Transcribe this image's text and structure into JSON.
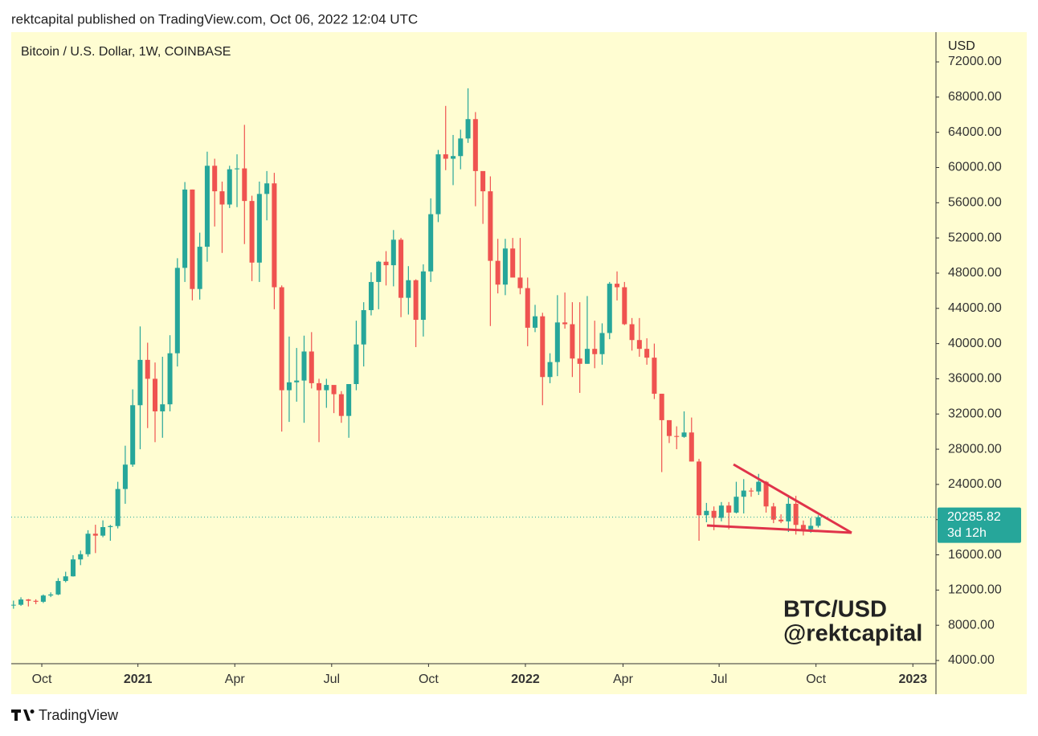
{
  "header": {
    "text": "rektcapital published on TradingView.com, Oct 06, 2022 12:04 UTC"
  },
  "footer": {
    "brand": "TradingView"
  },
  "chart_data": {
    "type": "candlestick",
    "title": "Bitcoin / U.S. Dollar, 1W, COINBASE",
    "y_axis_label": "USD",
    "annotation": [
      "BTC/USD",
      "@rektcapital"
    ],
    "countdown": "3d 12h",
    "up_color": "#26a69a",
    "down_color": "#ef5350",
    "categories": [
      null,
      null,
      null,
      null,
      null,
      null,
      null,
      null,
      null,
      null,
      null,
      null,
      null,
      null,
      null,
      null,
      null,
      null,
      null,
      null,
      null,
      null,
      null,
      null,
      null,
      null,
      null,
      null,
      null,
      null,
      null,
      null,
      null,
      null,
      null,
      null,
      null,
      null,
      null,
      null,
      null,
      null,
      null,
      null,
      null,
      null,
      null,
      null,
      null,
      null,
      null,
      null,
      null,
      null,
      null,
      null,
      null,
      null,
      null,
      null,
      null,
      null,
      null,
      null,
      null,
      null,
      null,
      null,
      null,
      null,
      null,
      null,
      null,
      null,
      null,
      null,
      null,
      null,
      null,
      null,
      null,
      null,
      null,
      null,
      null,
      null,
      null,
      null,
      null,
      null,
      null,
      null,
      null,
      null,
      null,
      null,
      null,
      null,
      null,
      null,
      null,
      null,
      null,
      null,
      null,
      null,
      null,
      null,
      null
    ],
    "open": [
      10280,
      10330,
      10930,
      10780,
      10670,
      11380,
      11500,
      13030,
      13560,
      15480,
      16070,
      18400,
      18180,
      19150,
      19270,
      23480,
      26250,
      33000,
      38150,
      36000,
      32300,
      33100,
      38900,
      48600,
      57500,
      46200,
      51000,
      60200,
      57300,
      55800,
      59800,
      59900,
      56200,
      49200,
      57000,
      58200,
      46400,
      34700,
      35600,
      35800,
      39100,
      35500,
      34700,
      35300,
      34250,
      31780,
      35400,
      39900,
      43800,
      47000,
      49300,
      48900,
      51800,
      45200,
      47200,
      42700,
      48200,
      54700,
      61500,
      61000,
      61300,
      63300,
      65500,
      59600,
      57300,
      49400,
      46700,
      50800,
      47500,
      46300,
      41800,
      43100,
      36200,
      37900,
      42400,
      42200,
      38300,
      37700,
      39400,
      38800,
      41200,
      46800,
      46400,
      42200,
      40400,
      39400,
      38400,
      34300,
      31300,
      29500,
      29400,
      29900,
      26600,
      20500,
      21000,
      20200,
      21600,
      20800,
      22600,
      23300,
      23200,
      24300,
      21500,
      20000,
      19800,
      21800,
      19400,
      18900,
      19300
    ],
    "high": [
      10800,
      11180,
      10990,
      10950,
      11500,
      11740,
      13350,
      14080,
      15960,
      16480,
      18800,
      19420,
      19920,
      19400,
      24300,
      28400,
      34800,
      41950,
      40100,
      37850,
      38500,
      40950,
      49700,
      58350,
      57500,
      52600,
      61800,
      61000,
      58400,
      60200,
      61500,
      64850,
      56800,
      58400,
      59600,
      59400,
      46600,
      40800,
      39500,
      40900,
      41300,
      36000,
      36000,
      35100,
      34600,
      35400,
      42600,
      44700,
      48100,
      49400,
      50500,
      52900,
      52000,
      48800,
      47300,
      49000,
      56500,
      62000,
      67000,
      63700,
      64300,
      69000,
      66300,
      59400,
      59000,
      51900,
      51900,
      52000,
      52000,
      47500,
      44400,
      43500,
      38900,
      45500,
      45800,
      44700,
      44700,
      45400,
      42600,
      42300,
      47000,
      48200,
      47000,
      42900,
      42900,
      40600,
      40000,
      34300,
      31300,
      30600,
      32300,
      31600,
      26900,
      21900,
      21500,
      22000,
      22000,
      24300,
      24600,
      23600,
      25200,
      24400,
      21900,
      20600,
      22800,
      22700,
      19900,
      20200,
      20500
    ],
    "low": [
      9880,
      10200,
      10140,
      10400,
      10530,
      11200,
      11420,
      12880,
      13530,
      14830,
      15800,
      16200,
      18000,
      17600,
      19000,
      21800,
      26000,
      28000,
      30400,
      28800,
      29300,
      32300,
      37400,
      47000,
      44900,
      45000,
      49300,
      53300,
      50300,
      55400,
      55500,
      51300,
      47100,
      47000,
      54000,
      43900,
      30000,
      31100,
      33400,
      31000,
      34900,
      28800,
      32700,
      32100,
      31000,
      29300,
      34700,
      37400,
      43200,
      43900,
      46600,
      46500,
      43000,
      43300,
      39600,
      40800,
      47000,
      53800,
      59700,
      58000,
      59800,
      62800,
      55600,
      53600,
      42000,
      45700,
      45500,
      48000,
      45600,
      39700,
      41300,
      33000,
      35500,
      36300,
      41700,
      36200,
      34400,
      37700,
      37200,
      37600,
      40500,
      44900,
      42100,
      39200,
      38500,
      37600,
      33700,
      25400,
      28700,
      28000,
      29300,
      26600,
      17600,
      19700,
      18800,
      19800,
      18900,
      20700,
      20700,
      22600,
      22800,
      20800,
      19600,
      19600,
      18600,
      18300,
      18200,
      18500,
      19100
    ],
    "close": [
      10330,
      10930,
      10780,
      10670,
      11380,
      11500,
      13030,
      13560,
      15480,
      16070,
      18400,
      18180,
      19150,
      19270,
      23480,
      26250,
      33000,
      38150,
      36000,
      32300,
      33100,
      38900,
      48600,
      57500,
      46200,
      51000,
      60200,
      57300,
      55800,
      59800,
      59900,
      56200,
      49200,
      57000,
      58200,
      46400,
      34700,
      35600,
      35800,
      39100,
      35500,
      34700,
      35300,
      34250,
      31780,
      35400,
      39900,
      43800,
      47000,
      49300,
      48900,
      51800,
      45200,
      47200,
      42700,
      48200,
      54700,
      61500,
      61000,
      61300,
      63300,
      65500,
      59600,
      57300,
      49400,
      46700,
      50800,
      47500,
      46300,
      41800,
      43100,
      36200,
      37900,
      42400,
      42200,
      38300,
      37700,
      39400,
      38800,
      41200,
      46800,
      46400,
      42200,
      40400,
      39400,
      38400,
      34300,
      31300,
      29500,
      29400,
      29900,
      26600,
      20500,
      21000,
      20200,
      21600,
      20800,
      22600,
      23300,
      23200,
      24300,
      21500,
      20000,
      19800,
      21800,
      19400,
      18900,
      19300,
      20285.82
    ],
    "xlim": [
      -0.3,
      123.8
    ],
    "xticks": [
      {
        "value": 3.8,
        "label": "Oct"
      },
      {
        "value": 16.7,
        "label": "2021"
      },
      {
        "value": 29.7,
        "label": "Apr"
      },
      {
        "value": 42.7,
        "label": "Jul"
      },
      {
        "value": 55.7,
        "label": "Oct"
      },
      {
        "value": 68.7,
        "label": "2022"
      },
      {
        "value": 81.8,
        "label": "Apr"
      },
      {
        "value": 94.7,
        "label": "Jul"
      },
      {
        "value": 107.7,
        "label": "Oct"
      },
      {
        "value": 120.7,
        "label": "2023"
      }
    ],
    "ylim": [
      3635,
      75380
    ],
    "yticks": [
      {
        "value": 4000,
        "label": "4000.00"
      },
      {
        "value": 8000,
        "label": "8000.00"
      },
      {
        "value": 12000,
        "label": "12000.00"
      },
      {
        "value": 16000,
        "label": "16000.00"
      },
      {
        "value": 20000,
        "label": "20000.00"
      },
      {
        "value": 24000,
        "label": "24000.00"
      },
      {
        "value": 28000,
        "label": "28000.00"
      },
      {
        "value": 32000,
        "label": "32000.00"
      },
      {
        "value": 36000,
        "label": "36000.00"
      },
      {
        "value": 40000,
        "label": "40000.00"
      },
      {
        "value": 44000,
        "label": "44000.00"
      },
      {
        "value": 48000,
        "label": "48000.00"
      },
      {
        "value": 52000,
        "label": "52000.00"
      },
      {
        "value": 56000,
        "label": "56000.00"
      },
      {
        "value": 60000,
        "label": "60000.00"
      },
      {
        "value": 64000,
        "label": "64000.00"
      },
      {
        "value": 68000,
        "label": "68000.00"
      },
      {
        "value": 72000,
        "label": "72000.00"
      }
    ]
  }
}
